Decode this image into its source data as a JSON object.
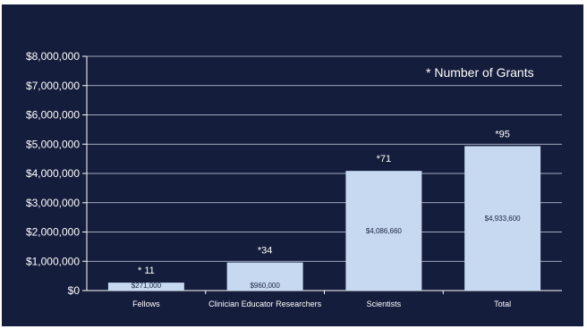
{
  "chart_data": {
    "type": "bar",
    "categories": [
      "Fellows",
      "Clinician Educator Researchers",
      "Scientists",
      "Total"
    ],
    "values": [
      271000,
      960000,
      4086660,
      4933600
    ],
    "data_labels": [
      "$271,000",
      "$960,000",
      "$4,086,660",
      "$4,933,600"
    ],
    "grant_counts": [
      "* 11",
      "*34",
      "*71",
      "*95"
    ],
    "annotation": "* Number of Grants",
    "ylim": [
      0,
      8000000
    ],
    "y_ticks": [
      0,
      1000000,
      2000000,
      3000000,
      4000000,
      5000000,
      6000000,
      7000000,
      8000000
    ],
    "y_tick_labels": [
      "$0",
      "$1,000,000",
      "$2,000,000",
      "$3,000,000",
      "$4,000,000",
      "$5,000,000",
      "$6,000,000",
      "$7,000,000",
      "$8,000,000"
    ],
    "grid": true,
    "colors": {
      "background": "#141d3c",
      "bar": "#c6d9f1",
      "grid": "#d0d6e6",
      "text": "#ffffff"
    }
  }
}
